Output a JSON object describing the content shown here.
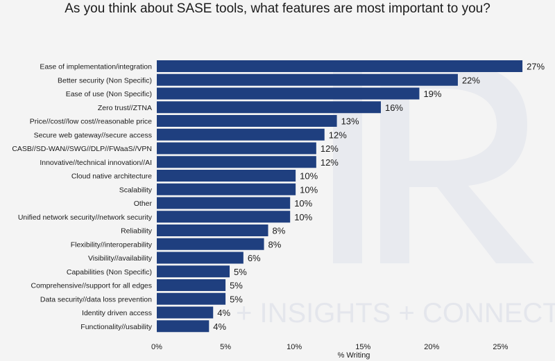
{
  "chart_data": {
    "type": "bar",
    "orientation": "horizontal",
    "title": "As you think about SASE tools, what features are most important to you?",
    "xlabel": "% Writing",
    "ylabel": "",
    "xlim": [
      0,
      27
    ],
    "xticks": [
      0,
      5,
      10,
      15,
      20,
      25
    ],
    "xtick_labels": [
      "0%",
      "5%",
      "10%",
      "15%",
      "20%",
      "25%"
    ],
    "grid": false,
    "bar_color": "#1f3f7f",
    "watermark_text": "+ INSIGHTS + CONNECT",
    "categories": [
      "Ease of implementation/integration",
      "Better security (Non Specific)",
      "Ease of use (Non Specific)",
      "Zero trust//ZTNA",
      "Price//cost//low cost//reasonable price",
      "Secure web gateway//secure access",
      "CASB//SD-WAN//SWG//DLP//FWaaS//VPN",
      "Innovative//technical innovation//AI",
      "Cloud native architecture",
      "Scalability",
      "Other",
      "Unified network security//network security",
      "Reliability",
      "Flexibility//interoperability",
      "Visibility//availability",
      "Capabilities (Non Specific)",
      "Comprehensive//support for all edges",
      "Data security//data loss prevention",
      "Identity driven access",
      "Functionality//usability"
    ],
    "values": [
      26.6,
      21.9,
      19.1,
      16.3,
      13.1,
      12.2,
      11.6,
      11.6,
      10.1,
      10.1,
      9.7,
      9.7,
      8.1,
      7.8,
      6.3,
      5.3,
      5.0,
      5.0,
      4.1,
      3.8
    ],
    "value_labels": [
      "27%",
      "22%",
      "19%",
      "16%",
      "13%",
      "12%",
      "12%",
      "12%",
      "10%",
      "10%",
      "10%",
      "10%",
      "8%",
      "8%",
      "6%",
      "5%",
      "5%",
      "5%",
      "4%",
      "4%"
    ]
  }
}
